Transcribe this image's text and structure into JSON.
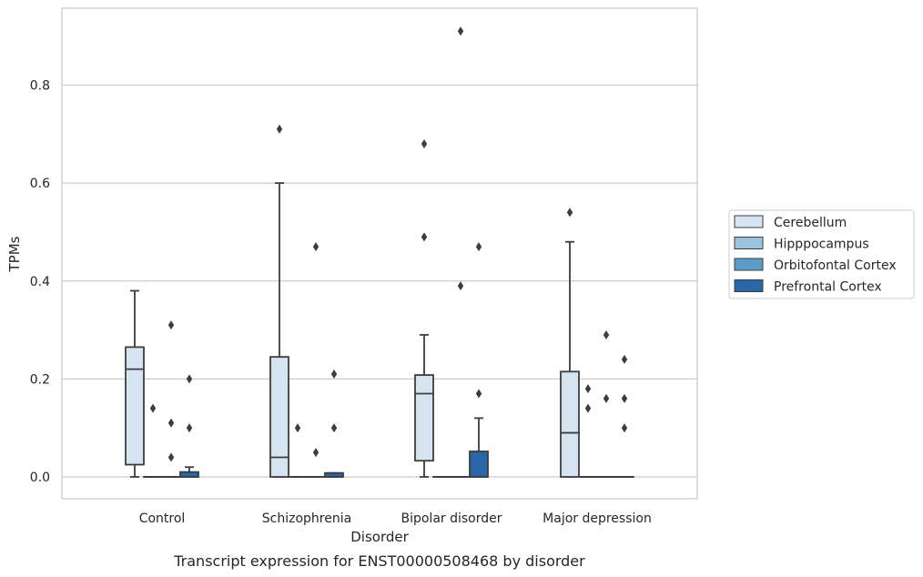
{
  "caption": "Transcript expression for ENST00000508468 by disorder",
  "chart_data": {
    "type": "box",
    "xlabel": "Disorder",
    "ylabel": "TPMs",
    "ylim": [
      -0.045,
      0.96
    ],
    "yticks": [
      0.0,
      0.2,
      0.4,
      0.6,
      0.8
    ],
    "ytick_labels": [
      "0.0",
      "0.2",
      "0.4",
      "0.6",
      "0.8"
    ],
    "grid": "horizontal",
    "legend_position": "right",
    "categories": [
      "Control",
      "Schizophrenia",
      "Bipolar disorder",
      "Major depression"
    ],
    "series": [
      {
        "name": "Cerebellum",
        "color": "#d6e4f2",
        "boxes": [
          {
            "whisker_low": 0.0,
            "q1": 0.025,
            "median": 0.22,
            "q3": 0.265,
            "whisker_high": 0.38,
            "outliers": []
          },
          {
            "whisker_low": 0.0,
            "q1": 0.0,
            "median": 0.04,
            "q3": 0.245,
            "whisker_high": 0.6,
            "outliers": [
              0.71
            ]
          },
          {
            "whisker_low": 0.0,
            "q1": 0.033,
            "median": 0.17,
            "q3": 0.208,
            "whisker_high": 0.29,
            "outliers": [
              0.49,
              0.68
            ]
          },
          {
            "whisker_low": 0.0,
            "q1": 0.0,
            "median": 0.09,
            "q3": 0.215,
            "whisker_high": 0.48,
            "outliers": [
              0.54
            ]
          }
        ]
      },
      {
        "name": "Hipppocampus",
        "color": "#9cc3dd",
        "boxes": [
          {
            "whisker_low": 0.0,
            "q1": 0.0,
            "median": 0.0,
            "q3": 0.0,
            "whisker_high": 0.0,
            "outliers": [
              0.14
            ]
          },
          {
            "whisker_low": 0.0,
            "q1": 0.0,
            "median": 0.0,
            "q3": 0.0,
            "whisker_high": 0.0,
            "outliers": [
              0.1
            ]
          },
          {
            "whisker_low": 0.0,
            "q1": 0.0,
            "median": 0.0,
            "q3": 0.0,
            "whisker_high": 0.0,
            "outliers": []
          },
          {
            "whisker_low": 0.0,
            "q1": 0.0,
            "median": 0.0,
            "q3": 0.0,
            "whisker_high": 0.0,
            "outliers": [
              0.14,
              0.18
            ]
          }
        ]
      },
      {
        "name": "Orbitofontal Cortex",
        "color": "#5a9bc8",
        "boxes": [
          {
            "whisker_low": 0.0,
            "q1": 0.0,
            "median": 0.0,
            "q3": 0.0,
            "whisker_high": 0.0,
            "outliers": [
              0.04,
              0.11,
              0.31
            ]
          },
          {
            "whisker_low": 0.0,
            "q1": 0.0,
            "median": 0.0,
            "q3": 0.0,
            "whisker_high": 0.0,
            "outliers": [
              0.05,
              0.47
            ]
          },
          {
            "whisker_low": 0.0,
            "q1": 0.0,
            "median": 0.0,
            "q3": 0.0,
            "whisker_high": 0.0,
            "outliers": [
              0.39,
              0.91
            ]
          },
          {
            "whisker_low": 0.0,
            "q1": 0.0,
            "median": 0.0,
            "q3": 0.0,
            "whisker_high": 0.0,
            "outliers": [
              0.16,
              0.29
            ]
          }
        ]
      },
      {
        "name": "Prefrontal Cortex",
        "color": "#2a67a8",
        "boxes": [
          {
            "whisker_low": 0.0,
            "q1": 0.0,
            "median": 0.0,
            "q3": 0.01,
            "whisker_high": 0.02,
            "outliers": [
              0.1,
              0.2
            ]
          },
          {
            "whisker_low": 0.0,
            "q1": 0.0,
            "median": 0.0,
            "q3": 0.008,
            "whisker_high": 0.008,
            "outliers": [
              0.1,
              0.21
            ]
          },
          {
            "whisker_low": 0.0,
            "q1": 0.0,
            "median": 0.0,
            "q3": 0.052,
            "whisker_high": 0.12,
            "outliers": [
              0.17,
              0.47
            ]
          },
          {
            "whisker_low": 0.0,
            "q1": 0.0,
            "median": 0.0,
            "q3": 0.0,
            "whisker_high": 0.0,
            "outliers": [
              0.1,
              0.16,
              0.24
            ]
          }
        ]
      }
    ]
  }
}
